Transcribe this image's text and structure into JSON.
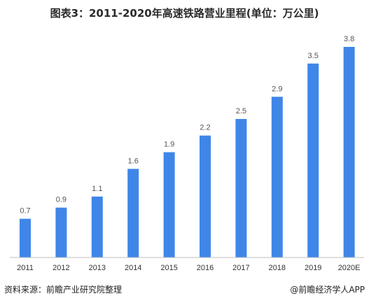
{
  "chart_data": {
    "type": "bar",
    "title": "图表3：2011-2020年高速铁路营业里程(单位：万公里)",
    "categories": [
      "2011",
      "2012",
      "2013",
      "2014",
      "2015",
      "2016",
      "2017",
      "2018",
      "2019",
      "2020E"
    ],
    "values": [
      0.7,
      0.9,
      1.1,
      1.6,
      1.9,
      2.2,
      2.5,
      2.9,
      3.5,
      3.8
    ],
    "value_labels": [
      "0.7",
      "0.9",
      "1.1",
      "1.6",
      "1.9",
      "2.2",
      "2.5",
      "2.9",
      "3.5",
      "3.8"
    ],
    "xlabel": "",
    "ylabel": "",
    "ylim": [
      0,
      3.8
    ],
    "grid": false,
    "bar_color": "#3F86E8"
  },
  "footer": {
    "source": "资料来源：前瞻产业研究院整理",
    "brand": "@前瞻经济学人APP"
  },
  "watermark": "前瞻产业研究院"
}
